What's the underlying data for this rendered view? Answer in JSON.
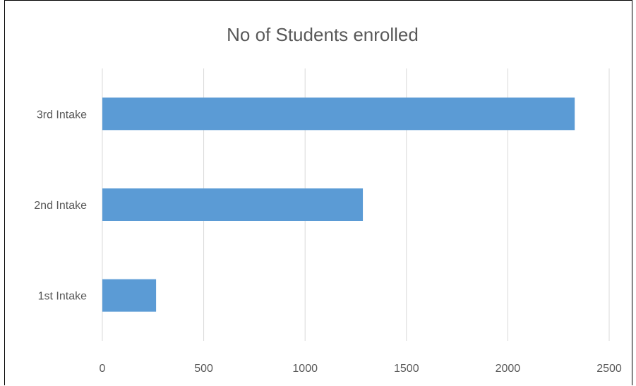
{
  "chart_data": {
    "type": "bar",
    "orientation": "horizontal",
    "title": "No of Students enrolled",
    "categories": [
      "1st Intake",
      "2nd Intake",
      "3rd Intake"
    ],
    "values": [
      265,
      1285,
      2330
    ],
    "xlabel": "",
    "ylabel": "",
    "xlim": [
      0,
      2500
    ],
    "x_ticks": [
      0,
      500,
      1000,
      1500,
      2000,
      2500
    ],
    "grid": "vertical",
    "legend": "none",
    "colors": {
      "bar": "#5b9bd5",
      "grid": "#d9d9d9",
      "text": "#595959"
    }
  }
}
